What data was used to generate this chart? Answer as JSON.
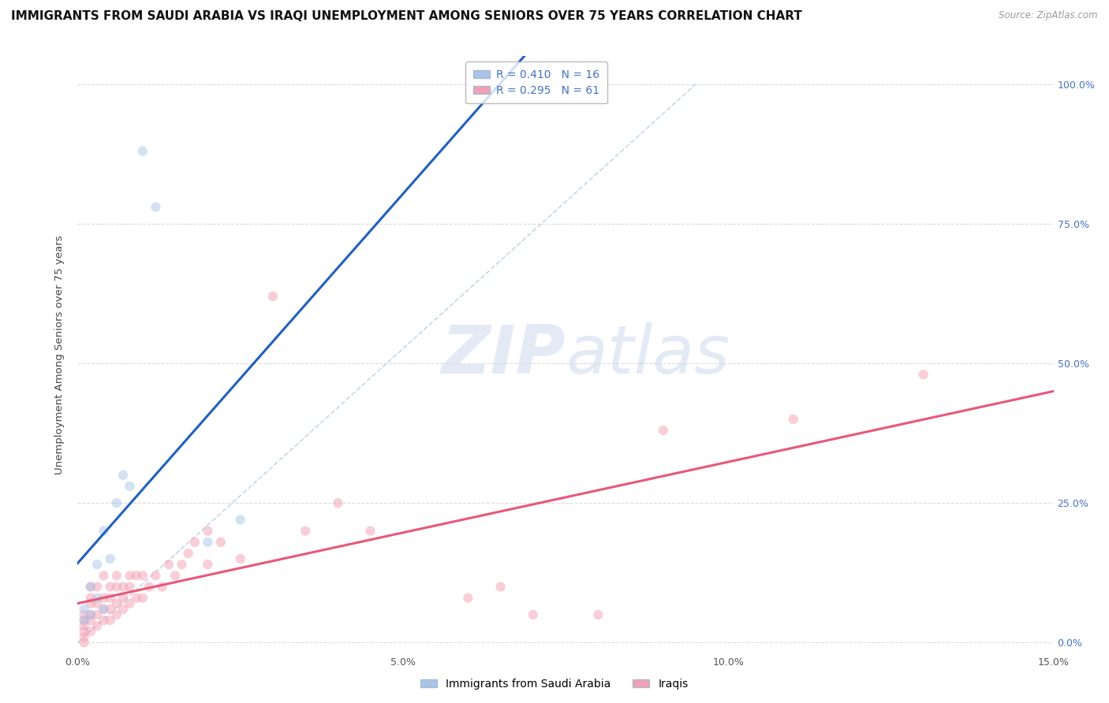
{
  "title": "IMMIGRANTS FROM SAUDI ARABIA VS IRAQI UNEMPLOYMENT AMONG SENIORS OVER 75 YEARS CORRELATION CHART",
  "source": "Source: ZipAtlas.com",
  "ylabel": "Unemployment Among Seniors over 75 years",
  "xlim": [
    0.0,
    0.15
  ],
  "ylim": [
    -0.02,
    1.05
  ],
  "xticks": [
    0.0,
    0.05,
    0.1,
    0.15
  ],
  "xticklabels": [
    "0.0%",
    "5.0%",
    "10.0%",
    "15.0%"
  ],
  "yticks": [
    0.0,
    0.25,
    0.5,
    0.75,
    1.0
  ],
  "left_yticklabels": [
    "",
    "",
    "",
    "",
    ""
  ],
  "right_yticks": [
    0.0,
    0.25,
    0.5,
    0.75,
    1.0
  ],
  "right_yticklabels": [
    "0.0%",
    "25.0%",
    "50.0%",
    "75.0%",
    "100.0%"
  ],
  "watermark_zip": "ZIP",
  "watermark_atlas": "atlas",
  "legend_r1": "R = 0.410",
  "legend_n1": "N = 16",
  "legend_r2": "R = 0.295",
  "legend_n2": "N = 61",
  "series1_color": "#a8c4e8",
  "series2_color": "#f2a0b4",
  "line1_color": "#2060c0",
  "line2_color": "#e85878",
  "ref_line_color": "#b8cce4",
  "series1_name": "Immigrants from Saudi Arabia",
  "series2_name": "Iraqis",
  "saudi_x": [
    0.001,
    0.001,
    0.002,
    0.002,
    0.003,
    0.003,
    0.004,
    0.004,
    0.005,
    0.006,
    0.007,
    0.008,
    0.01,
    0.012,
    0.02,
    0.025
  ],
  "saudi_y": [
    0.04,
    0.06,
    0.05,
    0.1,
    0.08,
    0.14,
    0.06,
    0.2,
    0.15,
    0.25,
    0.3,
    0.28,
    0.88,
    0.78,
    0.18,
    0.22
  ],
  "iraqi_x": [
    0.001,
    0.001,
    0.001,
    0.001,
    0.001,
    0.001,
    0.002,
    0.002,
    0.002,
    0.002,
    0.002,
    0.002,
    0.003,
    0.003,
    0.003,
    0.003,
    0.004,
    0.004,
    0.004,
    0.004,
    0.005,
    0.005,
    0.005,
    0.005,
    0.006,
    0.006,
    0.006,
    0.006,
    0.007,
    0.007,
    0.007,
    0.008,
    0.008,
    0.008,
    0.009,
    0.009,
    0.01,
    0.01,
    0.011,
    0.012,
    0.013,
    0.014,
    0.015,
    0.016,
    0.017,
    0.018,
    0.02,
    0.02,
    0.022,
    0.025,
    0.03,
    0.035,
    0.04,
    0.045,
    0.06,
    0.065,
    0.07,
    0.08,
    0.09,
    0.11,
    0.13
  ],
  "iraqi_y": [
    0.0,
    0.01,
    0.02,
    0.03,
    0.04,
    0.05,
    0.02,
    0.04,
    0.05,
    0.07,
    0.08,
    0.1,
    0.03,
    0.05,
    0.07,
    0.1,
    0.04,
    0.06,
    0.08,
    0.12,
    0.04,
    0.06,
    0.08,
    0.1,
    0.05,
    0.07,
    0.1,
    0.12,
    0.06,
    0.08,
    0.1,
    0.07,
    0.1,
    0.12,
    0.08,
    0.12,
    0.08,
    0.12,
    0.1,
    0.12,
    0.1,
    0.14,
    0.12,
    0.14,
    0.16,
    0.18,
    0.14,
    0.2,
    0.18,
    0.15,
    0.62,
    0.2,
    0.25,
    0.2,
    0.08,
    0.1,
    0.05,
    0.05,
    0.38,
    0.4,
    0.48
  ],
  "background_color": "#ffffff",
  "grid_color": "#cccccc",
  "title_fontsize": 11,
  "axis_label_fontsize": 9.5,
  "tick_fontsize": 9,
  "legend_fontsize": 10,
  "marker_size": 80,
  "marker_alpha": 0.5
}
